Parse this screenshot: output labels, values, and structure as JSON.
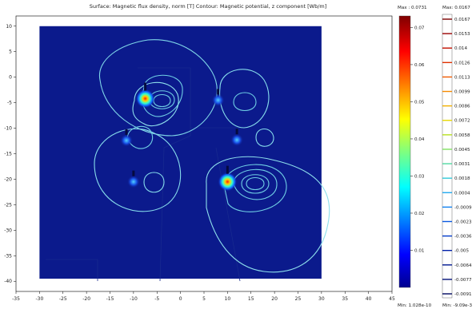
{
  "chart_data": {
    "type": "heatmap",
    "title": "Surface: Magnetic flux density, norm [T]   Contour: Magnetic potential, z component [Wb/m]",
    "xlim": [
      -35,
      45
    ],
    "ylim": [
      -42,
      12
    ],
    "x_ticks": [
      -35,
      -30,
      -25,
      -20,
      -15,
      -10,
      -5,
      0,
      5,
      10,
      15,
      20,
      25,
      30,
      35,
      40,
      45
    ],
    "y_ticks": [
      10,
      5,
      0,
      -5,
      -10,
      -15,
      -20,
      -25,
      -30,
      -35,
      -40
    ],
    "domain": {
      "x": [
        -30,
        30
      ],
      "y": [
        -39.5,
        10
      ]
    },
    "background_color": "#0b1a8c",
    "hotspots": [
      {
        "x": -7.5,
        "y": -4.2,
        "peak": 0.0731
      },
      {
        "x": 10,
        "y": -20.5,
        "peak": 0.07
      },
      {
        "x": 8,
        "y": -4.5,
        "peak": 0.012
      },
      {
        "x": 12,
        "y": -12.3,
        "peak": 0.01
      },
      {
        "x": -11.5,
        "y": -12.4,
        "peak": 0.01
      },
      {
        "x": -10,
        "y": -20.5,
        "peak": 0.012
      }
    ],
    "surface_colorbar": {
      "max_label": "Max : 0.0731",
      "min_label": "Min: 1.028e-10",
      "ticks": [
        "0.07",
        "0.06",
        "0.05",
        "0.04",
        "0.03",
        "0.02",
        "0.01"
      ],
      "range": [
        0,
        0.0731
      ]
    },
    "contour_colorbar": {
      "max_label": "Max: 0.0167",
      "min_label": "Min: -9.09e-3",
      "levels": [
        "0.0167",
        "0.0153",
        "0.014",
        "0.0126",
        "0.0113",
        "0.0099",
        "0.0086",
        "0.0072",
        "0.0058",
        "0.0045",
        "0.0031",
        "0.0018",
        "0.0004",
        "-0.0009",
        "-0.0023",
        "-0.0036",
        "-0.005",
        "-0.0064",
        "-0.0077",
        "-0.0091"
      ],
      "level_colors": [
        "#7a0000",
        "#9a0000",
        "#c21000",
        "#e03000",
        "#f05a00",
        "#f58a00",
        "#f2b000",
        "#e8d800",
        "#b8e020",
        "#80e060",
        "#50d8a0",
        "#30c8d8",
        "#20a8f0",
        "#1080f0",
        "#0858e0",
        "#0038c8",
        "#0020a8",
        "#001890",
        "#001078",
        "#000860"
      ]
    }
  }
}
